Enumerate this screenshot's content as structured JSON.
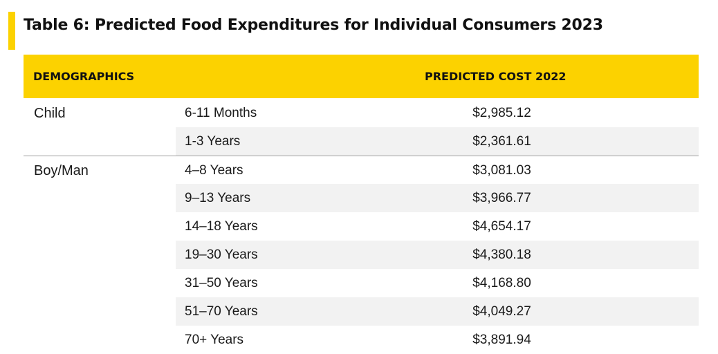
{
  "title": "Table 6: Predicted Food Expenditures for Individual Consumers 2023",
  "header": {
    "demographics": "DEMOGRAPHICS",
    "predicted_cost": "PREDICTED COST 2022"
  },
  "colors": {
    "accent": "#fcd200",
    "row_shade": "#f2f2f2",
    "divider": "#9a9a9a"
  },
  "rows": [
    {
      "group": "Child",
      "age": "6-11 Months",
      "cost": "$2,985.12"
    },
    {
      "group": "",
      "age": "1-3 Years",
      "cost": "$2,361.61"
    },
    {
      "group": "Boy/Man",
      "age": "4–8 Years",
      "cost": "$3,081.03"
    },
    {
      "group": "",
      "age": "9–13 Years",
      "cost": "$3,966.77"
    },
    {
      "group": "",
      "age": "14–18 Years",
      "cost": "$4,654.17"
    },
    {
      "group": "",
      "age": "19–30 Years",
      "cost": "$4,380.18"
    },
    {
      "group": "",
      "age": "31–50 Years",
      "cost": "$4,168.80"
    },
    {
      "group": "",
      "age": "51–70 Years",
      "cost": "$4,049.27"
    },
    {
      "group": "",
      "age": "70+ Years",
      "cost": "$3,891.94"
    }
  ]
}
